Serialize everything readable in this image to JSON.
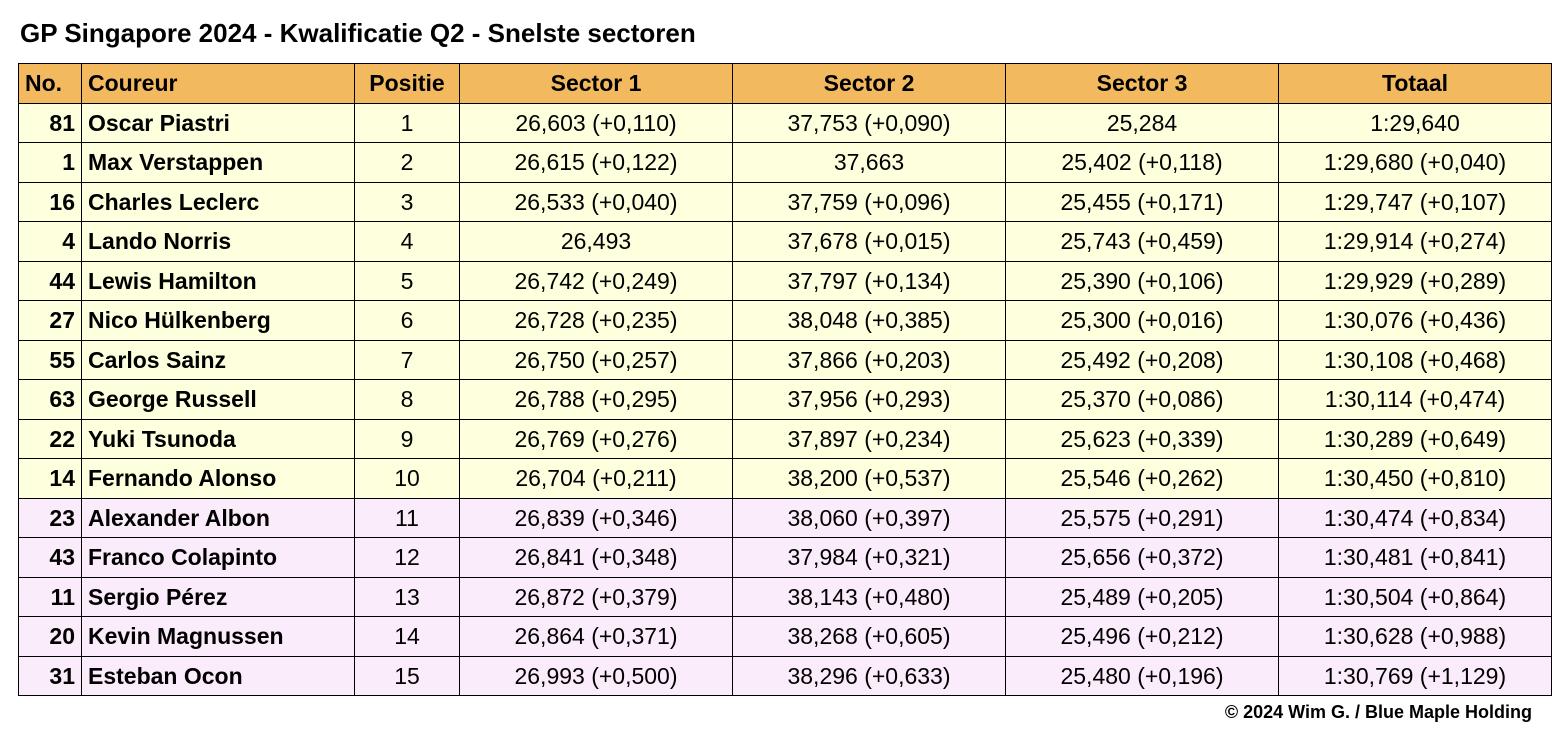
{
  "title": "GP Singapore 2024 - Kwalificatie Q2 - Snelste sectoren",
  "credit": "© 2024 Wim G. / Blue Maple Holding",
  "colors": {
    "header_bg": "#f2b95f",
    "row_yellow": "#feffdd",
    "row_pink": "#fbecfb",
    "row_white": "#ffffff",
    "border": "#000000"
  },
  "columns": {
    "no": "No.",
    "driver": "Coureur",
    "pos": "Positie",
    "s1": "Sector 1",
    "s2": "Sector 2",
    "s3": "Sector 3",
    "total": "Totaal"
  },
  "rows": [
    {
      "no": "81",
      "driver": "Oscar Piastri",
      "pos": "1",
      "s1": "26,603  (+0,110)",
      "s2": "37,753  (+0,090)",
      "s3": "25,284",
      "total": "1:29,640",
      "band": "yellow"
    },
    {
      "no": "1",
      "driver": "Max Verstappen",
      "pos": "2",
      "s1": "26,615  (+0,122)",
      "s2": "37,663",
      "s3": "25,402  (+0,118)",
      "total": "1:29,680 (+0,040)",
      "band": "yellow"
    },
    {
      "no": "16",
      "driver": "Charles Leclerc",
      "pos": "3",
      "s1": "26,533  (+0,040)",
      "s2": "37,759  (+0,096)",
      "s3": "25,455  (+0,171)",
      "total": "1:29,747 (+0,107)",
      "band": "yellow"
    },
    {
      "no": "4",
      "driver": "Lando Norris",
      "pos": "4",
      "s1": "26,493",
      "s2": "37,678  (+0,015)",
      "s3": "25,743  (+0,459)",
      "total": "1:29,914 (+0,274)",
      "band": "yellow"
    },
    {
      "no": "44",
      "driver": "Lewis Hamilton",
      "pos": "5",
      "s1": "26,742  (+0,249)",
      "s2": "37,797  (+0,134)",
      "s3": "25,390  (+0,106)",
      "total": "1:29,929 (+0,289)",
      "band": "yellow"
    },
    {
      "no": "27",
      "driver": "Nico Hülkenberg",
      "pos": "6",
      "s1": "26,728  (+0,235)",
      "s2": "38,048  (+0,385)",
      "s3": "25,300  (+0,016)",
      "total": "1:30,076 (+0,436)",
      "band": "yellow"
    },
    {
      "no": "55",
      "driver": "Carlos Sainz",
      "pos": "7",
      "s1": "26,750  (+0,257)",
      "s2": "37,866  (+0,203)",
      "s3": "25,492  (+0,208)",
      "total": "1:30,108 (+0,468)",
      "band": "yellow"
    },
    {
      "no": "63",
      "driver": "George Russell",
      "pos": "8",
      "s1": "26,788  (+0,295)",
      "s2": "37,956  (+0,293)",
      "s3": "25,370  (+0,086)",
      "total": "1:30,114 (+0,474)",
      "band": "yellow"
    },
    {
      "no": "22",
      "driver": "Yuki Tsunoda",
      "pos": "9",
      "s1": "26,769  (+0,276)",
      "s2": "37,897  (+0,234)",
      "s3": "25,623  (+0,339)",
      "total": "1:30,289 (+0,649)",
      "band": "yellow"
    },
    {
      "no": "14",
      "driver": "Fernando Alonso",
      "pos": "10",
      "s1": "26,704  (+0,211)",
      "s2": "38,200  (+0,537)",
      "s3": "25,546  (+0,262)",
      "total": "1:30,450 (+0,810)",
      "band": "yellow"
    },
    {
      "no": "23",
      "driver": "Alexander Albon",
      "pos": "11",
      "s1": "26,839  (+0,346)",
      "s2": "38,060  (+0,397)",
      "s3": "25,575  (+0,291)",
      "total": "1:30,474 (+0,834)",
      "band": "pink"
    },
    {
      "no": "43",
      "driver": "Franco Colapinto",
      "pos": "12",
      "s1": "26,841  (+0,348)",
      "s2": "37,984  (+0,321)",
      "s3": "25,656  (+0,372)",
      "total": "1:30,481 (+0,841)",
      "band": "pink"
    },
    {
      "no": "11",
      "driver": "Sergio Pérez",
      "pos": "13",
      "s1": "26,872  (+0,379)",
      "s2": "38,143  (+0,480)",
      "s3": "25,489  (+0,205)",
      "total": "1:30,504 (+0,864)",
      "band": "pink"
    },
    {
      "no": "20",
      "driver": "Kevin Magnussen",
      "pos": "14",
      "s1": "26,864  (+0,371)",
      "s2": "38,268  (+0,605)",
      "s3": "25,496  (+0,212)",
      "total": "1:30,628 (+0,988)",
      "band": "pink"
    },
    {
      "no": "31",
      "driver": "Esteban Ocon",
      "pos": "15",
      "s1": "26,993  (+0,500)",
      "s2": "38,296  (+0,633)",
      "s3": "25,480  (+0,196)",
      "total": "1:30,769 (+1,129)",
      "band": "pink"
    }
  ]
}
